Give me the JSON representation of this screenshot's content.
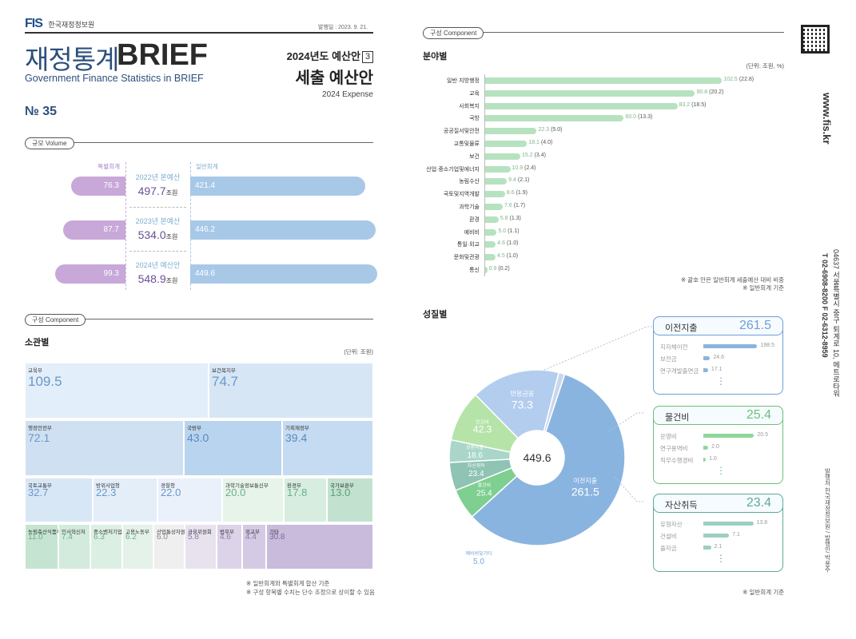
{
  "header": {
    "logo_mark": "FIS",
    "logo_text": "한국재정정보원",
    "pubdate": "발행일 : 2023. 9. 21.",
    "title_ko": "재정통계",
    "title_en": "BRIEF",
    "subtitle": "Government Finance Statistics in BRIEF",
    "issue": "№ 35",
    "series": "2024년도 예산안",
    "series_num": "3",
    "main_title": "세출 예산안",
    "main_en": "2024 Expense"
  },
  "volume": {
    "pill": "규모 Volume",
    "left_label": "특별회계",
    "right_label": "일반회계",
    "rows": [
      {
        "year": "2022년 본예산",
        "special": 76.3,
        "special_text": "76.3",
        "general": 421.4,
        "general_text": "421.4",
        "total": "497.7",
        "unit": "조원"
      },
      {
        "year": "2023년 본예산",
        "special": 87.7,
        "special_text": "87.7",
        "general": 446.2,
        "general_text": "446.2",
        "total": "534.0",
        "unit": "조원"
      },
      {
        "year": "2024년 예산안",
        "special": 99.3,
        "special_text": "99.3",
        "general": 449.6,
        "general_text": "449.6",
        "total": "548.9",
        "unit": "조원"
      }
    ]
  },
  "ministry": {
    "pill": "구성 Component",
    "title": "소관별",
    "unit": "(단위: 조원)",
    "note1": "※ 일반회계와 특별회계 합산 기준",
    "note2": "※ 구성 항목별 수치는 단수 조정으로 상이할 수 있음",
    "cells": [
      {
        "name": "교육부",
        "value": "109.5"
      },
      {
        "name": "보건복지부",
        "value": "74.7"
      },
      {
        "name": "행정안전부",
        "value": "72.1"
      },
      {
        "name": "국방부",
        "value": "43.0"
      },
      {
        "name": "기획재정부",
        "value": "39.4"
      },
      {
        "name": "국토교통부",
        "value": "32.7"
      },
      {
        "name": "방위사업청",
        "value": "22.3"
      },
      {
        "name": "경찰청",
        "value": "22.0"
      },
      {
        "name": "과학기술정보통신부",
        "value": "20.0"
      },
      {
        "name": "환경부",
        "value": "17.8"
      },
      {
        "name": "국가보훈부",
        "value": "13.0"
      },
      {
        "name": "농림축산식품부",
        "value": "11.0"
      },
      {
        "name": "인사혁신처",
        "value": "7.4"
      },
      {
        "name": "중소벤처기업부",
        "value": "6.3"
      },
      {
        "name": "고용노동부",
        "value": "6.2"
      },
      {
        "name": "산업통상자원부",
        "value": "6.0"
      },
      {
        "name": "금융위원회",
        "value": "5.8"
      },
      {
        "name": "법무부",
        "value": "4.6"
      },
      {
        "name": "외교부",
        "value": "4.4"
      },
      {
        "name": "기타",
        "value": "30.8"
      }
    ]
  },
  "field": {
    "pill": "구성 Component",
    "title": "분야별",
    "unit": "(단위: 조원, %)",
    "note1": "※ 괄호 안은 일반회계 세출예산 대비 비중",
    "note2": "※ 일반회계 기준",
    "max": 110,
    "items": [
      {
        "label": "일반·지방행정",
        "value": 102.5,
        "value_text": "102.5",
        "pct": "(22.8)"
      },
      {
        "label": "교육",
        "value": 90.8,
        "value_text": "90.8",
        "pct": "(20.2)"
      },
      {
        "label": "사회복지",
        "value": 83.2,
        "value_text": "83.2",
        "pct": "(18.5)"
      },
      {
        "label": "국방",
        "value": 60.0,
        "value_text": "60.0",
        "pct": "(13.3)"
      },
      {
        "label": "공공질서및안전",
        "value": 22.3,
        "value_text": "22.3",
        "pct": "(5.0)"
      },
      {
        "label": "교통및물류",
        "value": 18.1,
        "value_text": "18.1",
        "pct": "(4.0)"
      },
      {
        "label": "보건",
        "value": 15.2,
        "value_text": "15.2",
        "pct": "(3.4)"
      },
      {
        "label": "산업·중소기업및에너지",
        "value": 10.9,
        "value_text": "10.9",
        "pct": "(2.4)"
      },
      {
        "label": "농림수산",
        "value": 9.4,
        "value_text": "9.4",
        "pct": "(2.1)"
      },
      {
        "label": "국토및지역개발",
        "value": 8.6,
        "value_text": "8.6",
        "pct": "(1.9)"
      },
      {
        "label": "과학기술",
        "value": 7.6,
        "value_text": "7.6",
        "pct": "(1.7)"
      },
      {
        "label": "환경",
        "value": 5.8,
        "value_text": "5.8",
        "pct": "(1.3)"
      },
      {
        "label": "예비비",
        "value": 5.0,
        "value_text": "5.0",
        "pct": "(1.1)"
      },
      {
        "label": "통일·외교",
        "value": 4.6,
        "value_text": "4.6",
        "pct": "(1.0)"
      },
      {
        "label": "문화및관광",
        "value": 4.5,
        "value_text": "4.5",
        "pct": "(1.0)"
      },
      {
        "label": "통신",
        "value": 0.9,
        "value_text": "0.9",
        "pct": "(0.2)"
      }
    ]
  },
  "nature": {
    "title": "성질별",
    "note": "※ 일반회계 기준",
    "center": "449.6",
    "slices": [
      {
        "name": "이전지출",
        "value": 261.5,
        "value_text": "261.5",
        "color": "#8ab4e0"
      },
      {
        "name": "물건비",
        "value": 25.4,
        "value_text": "25.4",
        "color": "#7fcf90"
      },
      {
        "name": "자산취득",
        "value": 23.4,
        "value_text": "23.4",
        "color": "#8fc3b3"
      },
      {
        "name": "상환지출",
        "value": 18.6,
        "value_text": "18.6",
        "color": "#a9d6c8"
      },
      {
        "name": "인건비",
        "value": 42.3,
        "value_text": "42.3",
        "color": "#b5e3a8"
      },
      {
        "name": "반응금융",
        "value": 73.3,
        "value_text": "73.3",
        "color": "#b3cdee"
      },
      {
        "name": "예비비및기타",
        "value": 5.0,
        "value_text": "5.0",
        "color": "#c9d7ec"
      }
    ],
    "boxes": [
      {
        "title": "이전지출",
        "value": "261.5",
        "color": "#6f9fd8",
        "bar": "#8ab4e0",
        "max": 200,
        "items": [
          {
            "label": "지자체이전",
            "value": 198.5,
            "value_text": "198.5"
          },
          {
            "label": "보전금",
            "value": 24.6,
            "value_text": "24.6"
          },
          {
            "label": "연구개발출연금",
            "value": 17.1,
            "value_text": "17.1"
          }
        ]
      },
      {
        "title": "물건비",
        "value": "25.4",
        "color": "#6cc07a",
        "bar": "#8fd79b",
        "max": 22,
        "items": [
          {
            "label": "운영비",
            "value": 20.5,
            "value_text": "20.5"
          },
          {
            "label": "연구용역비",
            "value": 2.0,
            "value_text": "2.0"
          },
          {
            "label": "직무수행경비",
            "value": 1.0,
            "value_text": "1.0"
          }
        ]
      },
      {
        "title": "자산취득",
        "value": "23.4",
        "color": "#5fa99a",
        "bar": "#9dcfc2",
        "max": 15,
        "items": [
          {
            "label": "유형자산",
            "value": 13.8,
            "value_text": "13.8"
          },
          {
            "label": "건설비",
            "value": 7.1,
            "value_text": "7.1"
          },
          {
            "label": "출자금",
            "value": 2.1,
            "value_text": "2.1"
          }
        ]
      }
    ]
  },
  "side": {
    "url": "www.fis.kr",
    "addr": "04637 서울특별시 중구 퇴계로 10, 메트로타워",
    "tel": "T 02-6908-8200  F 02-6312-8959",
    "pub": "발행처 한국재정정보원 / 발행인 박용주"
  }
}
